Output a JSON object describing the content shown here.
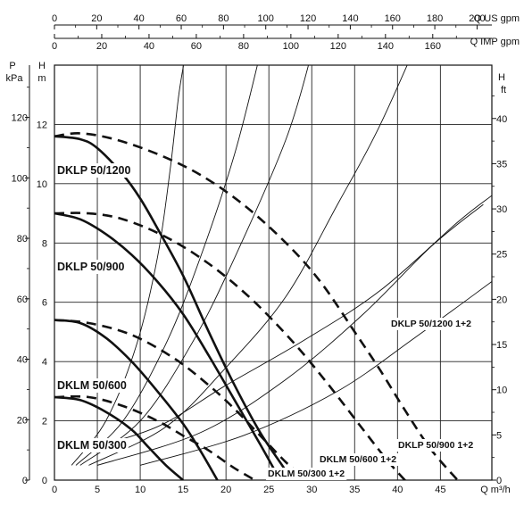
{
  "chart_data": {
    "type": "line",
    "axes": {
      "top_us": {
        "label": "Q US gpm",
        "ticks": [
          0,
          20,
          40,
          60,
          80,
          100,
          120,
          140,
          160,
          180,
          200
        ],
        "range": [
          0,
          207
        ]
      },
      "top_imp": {
        "label": "Q IMP gpm",
        "ticks": [
          0,
          20,
          40,
          60,
          80,
          100,
          120,
          140,
          160
        ],
        "range": [
          0,
          185
        ]
      },
      "x": {
        "label": "Q m³/h",
        "ticks": [
          0,
          5,
          10,
          15,
          20,
          25,
          30,
          35,
          40,
          45
        ],
        "range": [
          0,
          51
        ]
      },
      "y_m": {
        "label": "H m",
        "ticks": [
          0,
          2,
          4,
          6,
          8,
          10,
          12
        ],
        "range": [
          0,
          14
        ]
      },
      "y_kpa": {
        "label_top": "P",
        "label_bottom": "kPa",
        "ticks": [
          0,
          20,
          40,
          60,
          80,
          100,
          120
        ],
        "range": [
          0,
          137.3
        ]
      },
      "y_ft": {
        "label": "H ft",
        "ticks": [
          0,
          5,
          10,
          15,
          20,
          25,
          30,
          35,
          40
        ],
        "range": [
          0,
          45.9
        ]
      }
    },
    "grid": true,
    "series": [
      {
        "name": "DKLP 50/1200",
        "style": "thick-solid",
        "points": [
          [
            0,
            11.6
          ],
          [
            3,
            11.5
          ],
          [
            5,
            11.2
          ],
          [
            8,
            10.3
          ],
          [
            10,
            9.5
          ],
          [
            12,
            8.5
          ],
          [
            15,
            6.9
          ],
          [
            18,
            5.0
          ],
          [
            21,
            3.2
          ],
          [
            24,
            1.6
          ],
          [
            27,
            0.3
          ],
          [
            28.3,
            -0.4
          ]
        ]
      },
      {
        "name": "DKLP 50/900",
        "style": "thick-solid",
        "points": [
          [
            0,
            9.0
          ],
          [
            3,
            8.8
          ],
          [
            6,
            8.3
          ],
          [
            9,
            7.6
          ],
          [
            12,
            6.7
          ],
          [
            15,
            5.6
          ],
          [
            18,
            4.2
          ],
          [
            21,
            2.7
          ],
          [
            24,
            1.2
          ],
          [
            26.5,
            -0.1
          ]
        ]
      },
      {
        "name": "DKLM 50/600",
        "style": "thick-solid",
        "points": [
          [
            0,
            5.4
          ],
          [
            3,
            5.3
          ],
          [
            6,
            4.8
          ],
          [
            9,
            4.0
          ],
          [
            12,
            3.0
          ],
          [
            15,
            1.9
          ],
          [
            17,
            1.0
          ],
          [
            19,
            0.0
          ]
        ]
      },
      {
        "name": "DKLM 50/300",
        "style": "thick-solid",
        "points": [
          [
            0,
            2.8
          ],
          [
            3,
            2.7
          ],
          [
            6,
            2.3
          ],
          [
            9,
            1.7
          ],
          [
            11,
            1.1
          ],
          [
            13,
            0.5
          ],
          [
            15,
            0.0
          ]
        ]
      },
      {
        "name": "DKLP 50/1200 1+2",
        "style": "dashed",
        "points": [
          [
            0,
            11.6
          ],
          [
            3,
            11.7
          ],
          [
            7,
            11.5
          ],
          [
            12,
            11.0
          ],
          [
            17,
            10.3
          ],
          [
            22,
            9.3
          ],
          [
            27,
            8.0
          ],
          [
            31,
            6.7
          ],
          [
            35,
            5.0
          ],
          [
            38,
            3.7
          ],
          [
            41,
            2.3
          ],
          [
            44,
            1.0
          ],
          [
            47,
            0.0
          ]
        ]
      },
      {
        "name": "DKLP 50/900 1+2",
        "style": "dashed",
        "points": [
          [
            0,
            9.0
          ],
          [
            4,
            9.0
          ],
          [
            8,
            8.8
          ],
          [
            13,
            8.2
          ],
          [
            18,
            7.3
          ],
          [
            23,
            6.1
          ],
          [
            28,
            4.6
          ],
          [
            32,
            3.2
          ],
          [
            36,
            1.7
          ],
          [
            39,
            0.6
          ],
          [
            41.5,
            -0.2
          ]
        ]
      },
      {
        "name": "DKLM 50/600 1+2",
        "style": "dashed",
        "points": [
          [
            0,
            5.4
          ],
          [
            4,
            5.3
          ],
          [
            9,
            4.9
          ],
          [
            14,
            4.1
          ],
          [
            18,
            3.2
          ],
          [
            21,
            2.4
          ],
          [
            24,
            1.5
          ],
          [
            27,
            0.6
          ],
          [
            29,
            0.1
          ]
        ]
      },
      {
        "name": "DKLM 50/300 1+2",
        "style": "dashed",
        "points": [
          [
            0,
            2.8
          ],
          [
            4,
            2.8
          ],
          [
            8,
            2.5
          ],
          [
            12,
            2.0
          ],
          [
            15,
            1.5
          ],
          [
            18,
            1.0
          ],
          [
            21,
            0.4
          ],
          [
            24,
            -0.1
          ]
        ]
      }
    ],
    "system_curves": [
      [
        [
          2,
          0.5
        ],
        [
          6,
          2.0
        ],
        [
          9.5,
          4.5
        ],
        [
          12,
          7.5
        ],
        [
          13.5,
          10.5
        ],
        [
          14.5,
          13.0
        ],
        [
          15.3,
          14.4
        ]
      ],
      [
        [
          2.5,
          0.5
        ],
        [
          8,
          2.0
        ],
        [
          13,
          4.6
        ],
        [
          17,
          7.5
        ],
        [
          21,
          11.0
        ],
        [
          24,
          14.4
        ]
      ],
      [
        [
          3,
          0.5
        ],
        [
          10,
          2.0
        ],
        [
          16,
          4.6
        ],
        [
          21,
          7.5
        ],
        [
          27,
          11.5
        ],
        [
          30,
          14.4
        ]
      ],
      [
        [
          4,
          0.5
        ],
        [
          13,
          1.8
        ],
        [
          20,
          3.8
        ],
        [
          27,
          6.2
        ],
        [
          33,
          9.3
        ],
        [
          38,
          12.0
        ],
        [
          44,
          15.9
        ]
      ],
      [
        [
          5,
          0.5
        ],
        [
          17,
          1.6
        ],
        [
          27,
          3.4
        ],
        [
          36,
          5.6
        ],
        [
          44,
          7.9
        ],
        [
          50,
          9.3
        ]
      ],
      [
        [
          10,
          0.5
        ],
        [
          22,
          1.5
        ],
        [
          33,
          3.0
        ],
        [
          42,
          4.8
        ],
        [
          51,
          6.7
        ]
      ],
      [
        [
          3,
          1.0
        ],
        [
          12,
          1.8
        ],
        [
          20,
          3.2
        ],
        [
          29,
          4.7
        ],
        [
          38,
          6.4
        ],
        [
          47,
          8.7
        ],
        [
          51,
          9.6
        ]
      ]
    ],
    "labels": [
      {
        "text": "DKLP 50/1200",
        "series": "DKLP 50/1200"
      },
      {
        "text": "DKLP 50/900",
        "series": "DKLP 50/900"
      },
      {
        "text": "DKLM 50/600",
        "series": "DKLM 50/600"
      },
      {
        "text": "DKLM 50/300",
        "series": "DKLM 50/300"
      },
      {
        "text": "DKLP 50/1200 1+2",
        "series": "DKLP 50/1200 1+2"
      },
      {
        "text": "DKLP 50/900 1+2",
        "series": "DKLP 50/900 1+2"
      },
      {
        "text": "DKLM 50/600 1+2",
        "series": "DKLM 50/600 1+2"
      },
      {
        "text": "DKLM 50/300 1+2",
        "series": "DKLM 50/300 1+2"
      }
    ]
  }
}
